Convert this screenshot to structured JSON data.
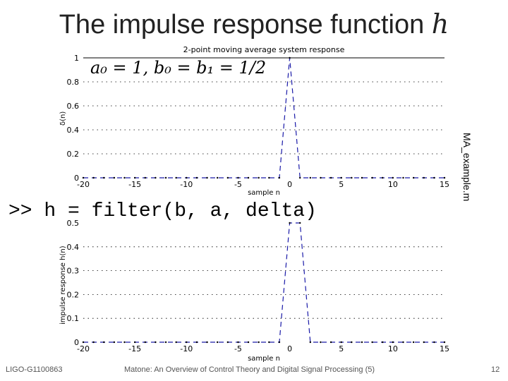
{
  "slide": {
    "title_text": "The impulse response function ",
    "title_math": "h",
    "coefficients": "a₀ = 1, b₀ = b₁ = 1/2",
    "code": ">> h = filter(b, a, delta)",
    "side_label": "MA_example.m",
    "footer_left": "LIGO-G1100863",
    "footer_center": "Matone: An Overview of Control Theory and Digital Signal Processing (5)",
    "page_number": "12"
  },
  "chart_data": [
    {
      "type": "line",
      "title": "2-point moving average system response",
      "xlabel": "sample n",
      "ylabel": "δ(n)",
      "xlim": [
        -20,
        15
      ],
      "ylim": [
        0,
        1
      ],
      "x_ticks": [
        -20,
        -15,
        -10,
        -5,
        0,
        5,
        10,
        15
      ],
      "y_ticks": [
        0,
        0.2,
        0.4,
        0.6,
        0.8,
        1
      ],
      "grid": "horizontal dotted",
      "series": [
        {
          "style": "dashed",
          "x": [
            -20,
            -19,
            -18,
            -17,
            -16,
            -15,
            -14,
            -13,
            -12,
            -11,
            -10,
            -9,
            -8,
            -7,
            -6,
            -5,
            -4,
            -3,
            -2,
            -1,
            0,
            1,
            2,
            3,
            4,
            5,
            6,
            7,
            8,
            9,
            10,
            11,
            12,
            13,
            14,
            15
          ],
          "y": [
            0,
            0,
            0,
            0,
            0,
            0,
            0,
            0,
            0,
            0,
            0,
            0,
            0,
            0,
            0,
            0,
            0,
            0,
            0,
            0,
            1,
            0,
            0,
            0,
            0,
            0,
            0,
            0,
            0,
            0,
            0,
            0,
            0,
            0,
            0,
            0
          ]
        }
      ]
    },
    {
      "type": "line",
      "title": "",
      "xlabel": "sample n",
      "ylabel": "impulse response h(n)",
      "xlim": [
        -20,
        15
      ],
      "ylim": [
        0,
        0.5
      ],
      "x_ticks": [
        -20,
        -15,
        -10,
        -5,
        0,
        5,
        10,
        15
      ],
      "y_ticks": [
        0,
        0.1,
        0.2,
        0.3,
        0.4,
        0.5
      ],
      "grid": "horizontal dotted",
      "series": [
        {
          "style": "dashed",
          "x": [
            -20,
            -19,
            -18,
            -17,
            -16,
            -15,
            -14,
            -13,
            -12,
            -11,
            -10,
            -9,
            -8,
            -7,
            -6,
            -5,
            -4,
            -3,
            -2,
            -1,
            0,
            1,
            2,
            3,
            4,
            5,
            6,
            7,
            8,
            9,
            10,
            11,
            12,
            13,
            14,
            15
          ],
          "y": [
            0,
            0,
            0,
            0,
            0,
            0,
            0,
            0,
            0,
            0,
            0,
            0,
            0,
            0,
            0,
            0,
            0,
            0,
            0,
            0,
            0.5,
            0.5,
            0,
            0,
            0,
            0,
            0,
            0,
            0,
            0,
            0,
            0,
            0,
            0,
            0,
            0
          ]
        }
      ]
    }
  ]
}
